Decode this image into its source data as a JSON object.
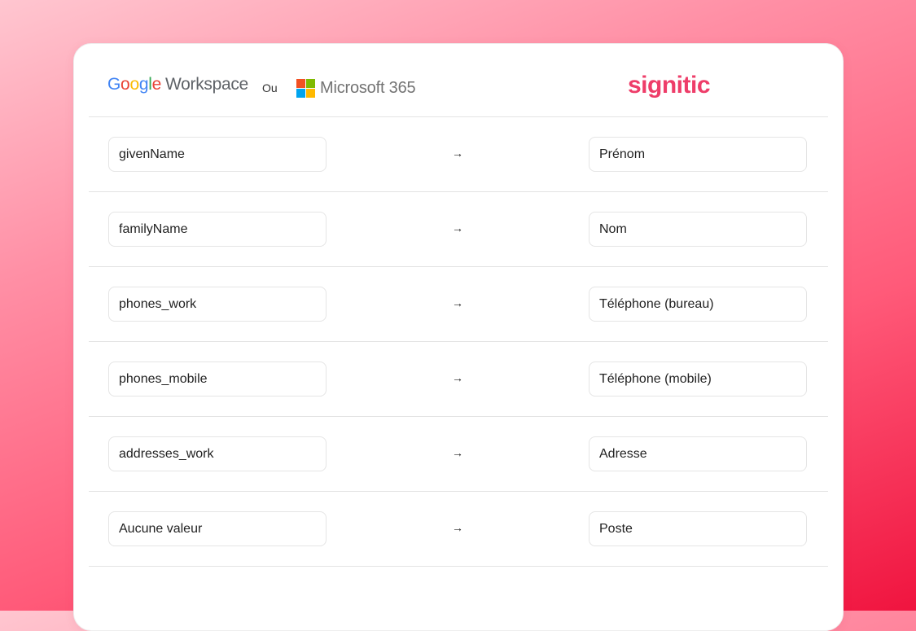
{
  "header": {
    "google_letters": [
      "G",
      "o",
      "o",
      "g",
      "l",
      "e"
    ],
    "google_workspace_suffix": "Workspace",
    "separator": "Ou",
    "microsoft_label": "Microsoft 365",
    "microsoft_logo_colors": [
      "#F25022",
      "#7FBA00",
      "#00A4EF",
      "#FFB900"
    ],
    "brand": "signitic",
    "brand_color": "#ee3d69"
  },
  "mappings": [
    {
      "source": "givenName",
      "arrow": "→",
      "target": "Prénom"
    },
    {
      "source": "familyName",
      "arrow": "→",
      "target": "Nom"
    },
    {
      "source": "phones_work",
      "arrow": "→",
      "target": "Téléphone (bureau)"
    },
    {
      "source": "phones_mobile",
      "arrow": "→",
      "target": "Téléphone (mobile)"
    },
    {
      "source": "addresses_work",
      "arrow": "→",
      "target": "Adresse"
    },
    {
      "source": "Aucune valeur",
      "arrow": "→",
      "target": "Poste"
    }
  ]
}
